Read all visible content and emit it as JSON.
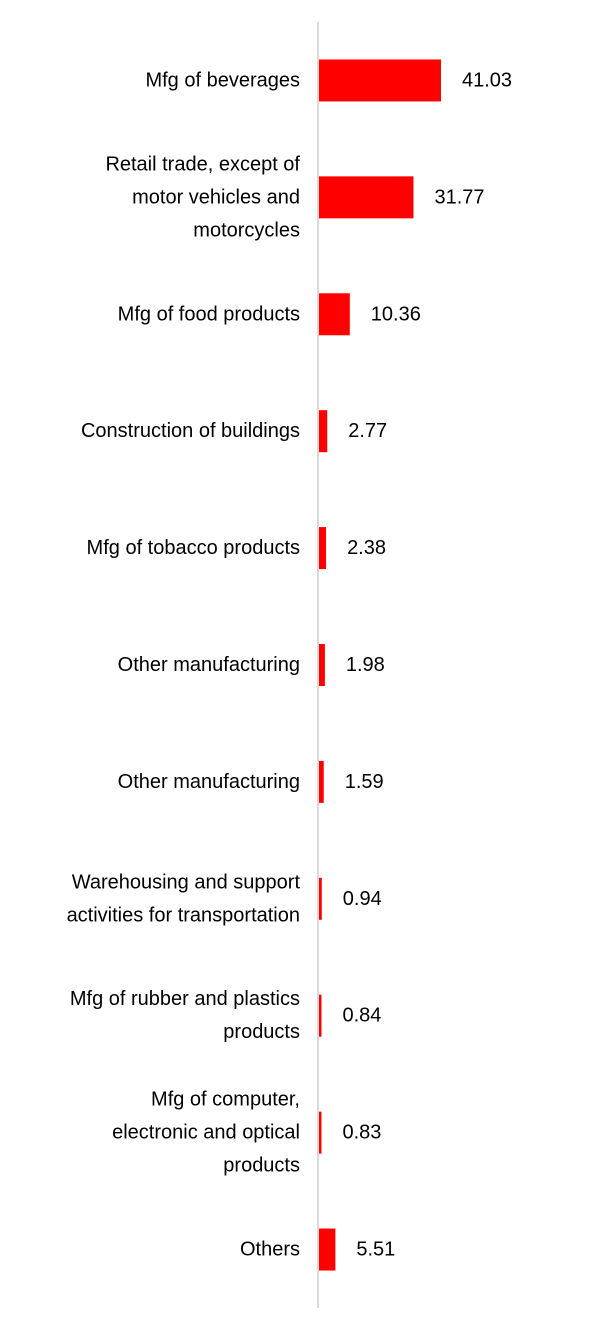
{
  "chart_data": {
    "type": "bar",
    "orientation": "horizontal",
    "categories": [
      "Mfg of beverages",
      "Retail trade, except of motor vehicles and motorcycles",
      "Mfg of food products",
      "Construction of buildings",
      "Mfg of tobacco products",
      "Other manufacturing",
      "Other manufacturing",
      "Warehousing and support activities for transportation",
      "Mfg of rubber and plastics products",
      "Mfg of computer, electronic and optical products",
      "Others"
    ],
    "category_lines": [
      [
        "Mfg of beverages"
      ],
      [
        "Retail trade, except of",
        "motor vehicles and",
        "motorcycles"
      ],
      [
        "Mfg of food products"
      ],
      [
        "Construction of buildings"
      ],
      [
        "Mfg of tobacco products"
      ],
      [
        "Other manufacturing"
      ],
      [
        "Other manufacturing"
      ],
      [
        "Warehousing and support",
        "activities for transportation"
      ],
      [
        "Mfg of rubber and plastics",
        "products"
      ],
      [
        "Mfg of computer,",
        "electronic and optical",
        "products"
      ],
      [
        "Others"
      ]
    ],
    "values": [
      41.03,
      31.77,
      10.36,
      2.77,
      2.38,
      1.98,
      1.59,
      0.94,
      0.84,
      0.83,
      5.51
    ],
    "value_labels": [
      "41.03",
      "31.77",
      "10.36",
      "2.77",
      "2.38",
      "1.98",
      "1.59",
      "0.94",
      "0.84",
      "0.83",
      "5.51"
    ],
    "title": "",
    "xlabel": "",
    "ylabel": "",
    "xlim": [
      0,
      45
    ],
    "grid": false,
    "legend": "none",
    "bar_color": "#ff0000",
    "axis_color": "#d9d9d9"
  }
}
